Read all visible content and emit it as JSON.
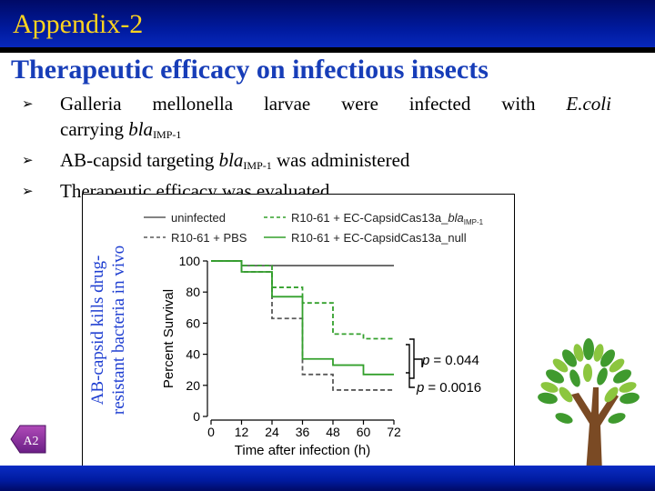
{
  "header": {
    "title": "Appendix-2"
  },
  "slide": {
    "heading": "Therapeutic efficacy on infectious insects",
    "bullet1": {
      "line1_words": [
        "Galleria",
        "mellonella",
        "larvae",
        "were",
        "infected",
        "with"
      ],
      "line1_italic": "E.coli",
      "line2_text": "carrying ",
      "line2_gene": "bla",
      "line2_sub": "IMP-1"
    },
    "bullet2": {
      "before": "AB-capsid targeting ",
      "gene": "bla",
      "sub": "IMP-1",
      "after": " was administered"
    },
    "bullet3": {
      "text": "Therapeutic efficacy was evaluated"
    },
    "side_label": {
      "line1": "AB-capsid kills drug-",
      "line2": "resistant bacteria in vivo"
    },
    "nav_badge": "A2"
  },
  "chart_data": {
    "type": "line",
    "step": true,
    "xlabel": "Time after infection (h)",
    "ylabel": "Percent Survival",
    "xlim": [
      0,
      72
    ],
    "ylim": [
      0,
      100
    ],
    "xticks": [
      0,
      12,
      24,
      36,
      48,
      60,
      72
    ],
    "yticks": [
      0,
      20,
      40,
      60,
      80,
      100
    ],
    "grid": false,
    "legend": "top",
    "series": [
      {
        "name": "uninfected",
        "color": "#5a5a5a",
        "dashed": false,
        "x": [
          0,
          12,
          72
        ],
        "y": [
          100,
          97,
          97
        ]
      },
      {
        "name": "R10-61 + PBS",
        "color": "#5a5a5a",
        "dashed": true,
        "x": [
          0,
          12,
          24,
          36,
          48,
          72
        ],
        "y": [
          100,
          93,
          63,
          27,
          17,
          17
        ]
      },
      {
        "name": "R10-61 + EC-CapsidCas13a_blaIMP-1",
        "name_main": "R10-61 + EC-CapsidCas13a_",
        "name_gene": "bla",
        "name_sub": "IMP-1",
        "color": "#33a02c",
        "dashed": true,
        "x": [
          0,
          12,
          24,
          36,
          48,
          60,
          72
        ],
        "y": [
          100,
          97,
          83,
          73,
          53,
          50,
          50
        ]
      },
      {
        "name": "R10-61 + EC-CapsidCas13a_null",
        "color": "#33a02c",
        "dashed": false,
        "x": [
          0,
          12,
          24,
          36,
          48,
          60,
          72
        ],
        "y": [
          100,
          93,
          77,
          37,
          33,
          27,
          27
        ]
      }
    ],
    "annotations": [
      {
        "text": "p = 0.044",
        "p_label": "p",
        "value": "= 0.044"
      },
      {
        "text": "p = 0.0016",
        "p_label": "p",
        "value": "= 0.0016"
      }
    ]
  }
}
